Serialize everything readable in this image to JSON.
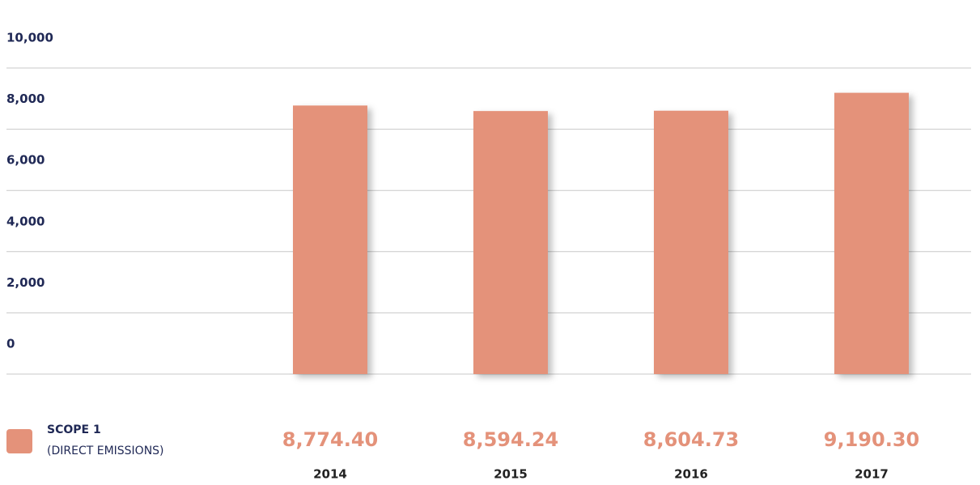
{
  "chart_data": {
    "type": "bar",
    "categories": [
      "2014",
      "2015",
      "2016",
      "2017"
    ],
    "series": [
      {
        "name": "SCOPE 1",
        "note": "(DIRECT EMISSIONS)",
        "color": "#e4927a",
        "values": [
          8774.4,
          8594.24,
          8604.73,
          9190.3
        ],
        "value_labels": [
          "8,774.40",
          "8,594.24",
          "8,604.73",
          "9,190.30"
        ]
      }
    ],
    "ylim": [
      0,
      10000
    ],
    "yticks": [
      0,
      {
        "value": 2000,
        "label": "2,000"
      },
      {
        "value": 4000,
        "label": "4,000"
      },
      {
        "value": 6000,
        "label": "6,000"
      },
      {
        "value": 8000,
        "label": "8,000"
      },
      {
        "value": 10000,
        "label": "10,000"
      }
    ],
    "grid": true
  }
}
